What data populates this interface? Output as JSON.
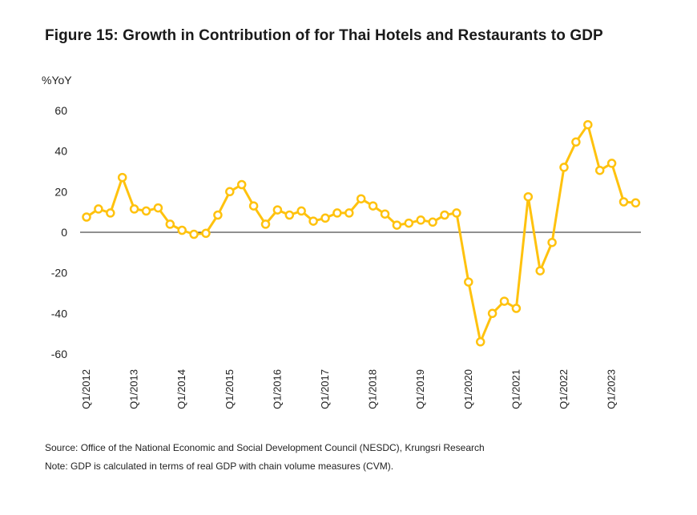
{
  "title": "Figure 15: Growth in Contribution of for Thai Hotels and Restaurants to GDP",
  "unit_label": "%YoY",
  "source": "Source: Office of the National Economic and Social Development Council (NESDC), Krungsri Research",
  "note": "Note: GDP is calculated in terms of real GDP with chain volume measures (CVM).",
  "colors": {
    "line": "#FFC20E",
    "marker_fill": "#ffffff",
    "axis": "#222222"
  },
  "chart_data": {
    "type": "line",
    "ylim": [
      -60,
      60
    ],
    "yticks": [
      -60,
      -40,
      -20,
      0,
      20,
      40,
      60
    ],
    "x_tick_labels": [
      "Q1/2012",
      "Q1/2013",
      "Q1/2014",
      "Q1/2015",
      "Q1/2016",
      "Q1/2017",
      "Q1/2018",
      "Q1/2019",
      "Q1/2020",
      "Q1/2021",
      "Q1/2022",
      "Q1/2023"
    ],
    "grid": false,
    "series": [
      {
        "values": [
          7.5,
          11.5,
          9.5,
          27,
          11.5,
          10.5,
          12,
          4,
          1,
          -1,
          -0.5,
          8.5,
          20,
          23.5,
          13,
          4,
          11,
          8.5,
          10.5,
          5.5,
          7,
          9.5,
          9.5,
          16.5,
          13,
          9,
          3.5,
          4.5,
          6,
          5,
          8.5,
          9.5,
          -24.5,
          -54,
          -40,
          -34,
          -37.5,
          17.5,
          -19,
          -5,
          32,
          44.5,
          53,
          30.5,
          34,
          15,
          14.5
        ]
      }
    ]
  }
}
